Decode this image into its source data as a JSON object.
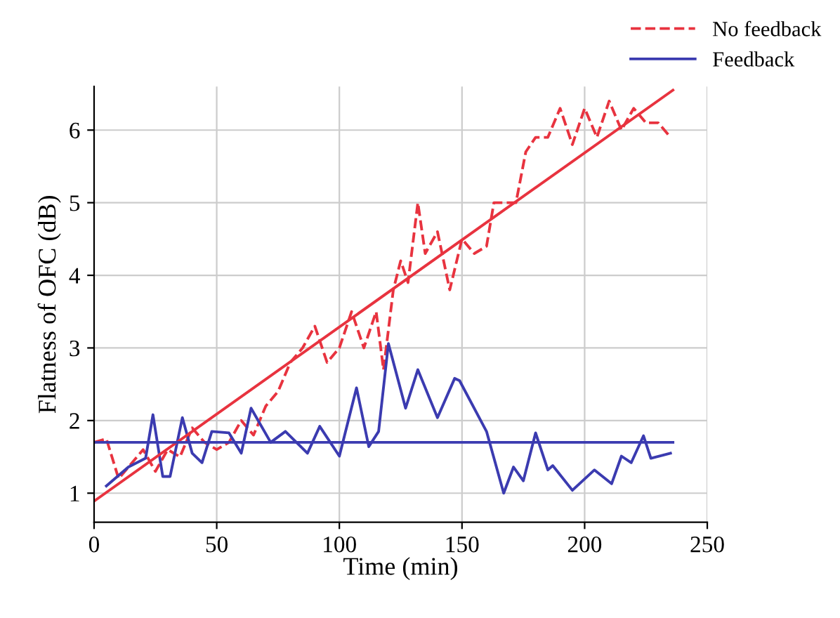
{
  "chart_data": {
    "type": "line",
    "xlabel": "Time (min)",
    "ylabel": "Flatness of OFC (dB)",
    "xlim": [
      0,
      250
    ],
    "xticks": [
      0,
      50,
      100,
      150,
      200,
      250
    ],
    "ylim": [
      0.6,
      6.6
    ],
    "yticks": [
      1,
      2,
      3,
      4,
      5,
      6
    ],
    "grid": true,
    "legend": "top right",
    "series": [
      {
        "name": "No feedback",
        "color": "#e8333f",
        "line_style": "dashed",
        "x": [
          0,
          5,
          10,
          15,
          20,
          25,
          30,
          35,
          40,
          45,
          50,
          55,
          60,
          65,
          70,
          75,
          80,
          85,
          90,
          95,
          100,
          105,
          110,
          115,
          118,
          122,
          125,
          128,
          132,
          135,
          140,
          145,
          150,
          155,
          160,
          163,
          167,
          172,
          176,
          180,
          185,
          190,
          195,
          200,
          205,
          210,
          215,
          220,
          225,
          230,
          235
        ],
        "values": [
          1.7,
          1.75,
          1.2,
          1.4,
          1.6,
          1.3,
          1.6,
          1.5,
          1.9,
          1.7,
          1.6,
          1.7,
          2.0,
          1.8,
          2.2,
          2.4,
          2.8,
          3.0,
          3.3,
          2.8,
          3.0,
          3.5,
          3.0,
          3.5,
          2.7,
          3.8,
          4.2,
          3.9,
          5.0,
          4.3,
          4.6,
          3.8,
          4.5,
          4.3,
          4.4,
          5.0,
          5.0,
          5.0,
          5.7,
          5.9,
          5.9,
          6.3,
          5.8,
          6.3,
          5.9,
          6.4,
          6.0,
          6.3,
          6.1,
          6.1,
          5.9
        ]
      },
      {
        "name": "Feedback",
        "color": "#3b3bb0",
        "line_style": "solid",
        "x": [
          5,
          14,
          21,
          24,
          28,
          31,
          36,
          40,
          44,
          48,
          55,
          60,
          64,
          72,
          78,
          87,
          92,
          100,
          107,
          112,
          116,
          120,
          127,
          132,
          140,
          147,
          149,
          160,
          167,
          171,
          175,
          180,
          185,
          187,
          195,
          204,
          211,
          215,
          219,
          224,
          227,
          235
        ],
        "values": [
          1.1,
          1.36,
          1.48,
          2.08,
          1.23,
          1.23,
          2.04,
          1.55,
          1.42,
          1.85,
          1.83,
          1.55,
          2.17,
          1.7,
          1.85,
          1.55,
          1.92,
          1.51,
          2.45,
          1.64,
          1.85,
          3.06,
          2.17,
          2.7,
          2.04,
          2.58,
          2.55,
          1.85,
          1.0,
          1.36,
          1.17,
          1.83,
          1.32,
          1.38,
          1.04,
          1.32,
          1.13,
          1.51,
          1.42,
          1.79,
          1.48,
          1.55
        ]
      },
      {
        "color": "#e8333f",
        "line_style": "solid",
        "x": [
          0,
          236
        ],
        "values": [
          0.89,
          6.55
        ]
      },
      {
        "color": "#3b3bb0",
        "line_style": "solid",
        "x": [
          0,
          236
        ],
        "values": [
          1.7,
          1.7
        ]
      }
    ]
  }
}
